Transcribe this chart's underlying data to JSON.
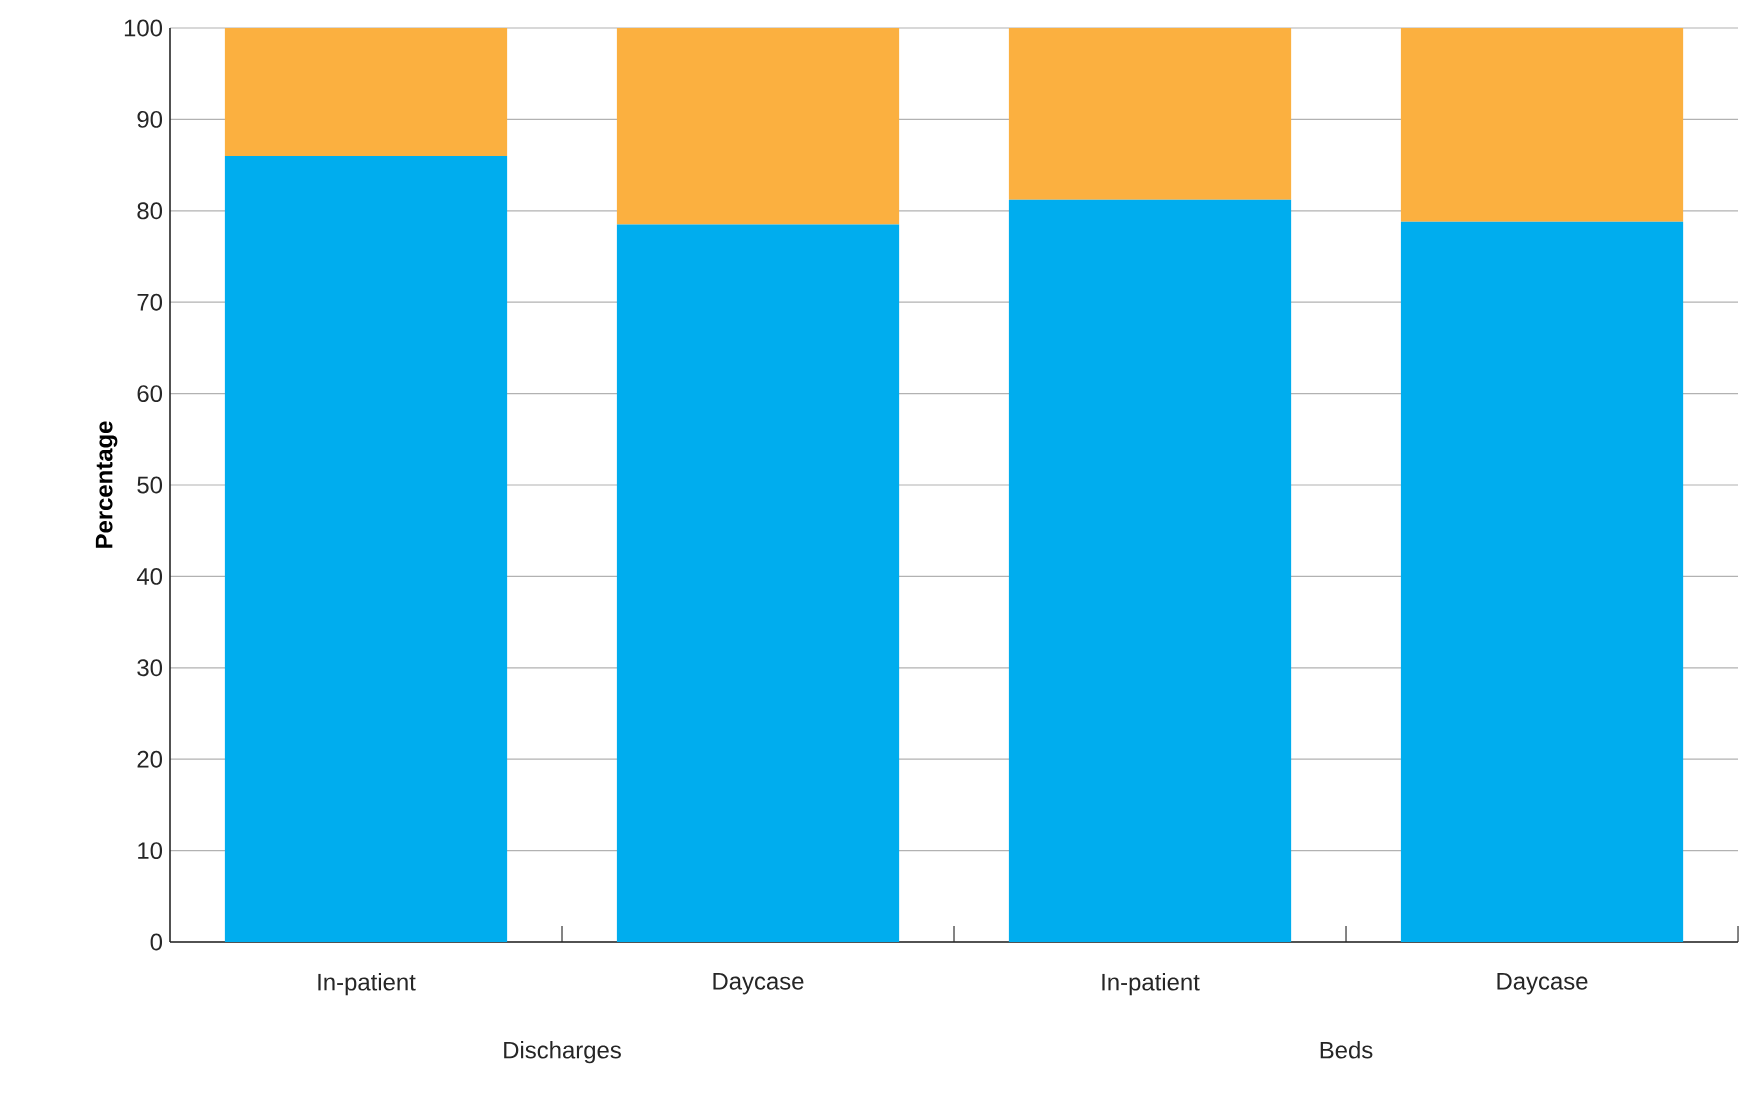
{
  "chart_data": {
    "type": "bar",
    "stacked": true,
    "ylabel": "Percentage",
    "categories": [
      "In-patient",
      "Daycase",
      "In-patient",
      "Daycase"
    ],
    "series": [
      {
        "color": "#00adee",
        "values": [
          86,
          78.5,
          81.2,
          78.8
        ]
      },
      {
        "color": "#fbb040",
        "values": [
          14,
          21.5,
          18.8,
          21.2
        ]
      }
    ],
    "ylim": [
      0,
      100
    ],
    "yticks": [
      0,
      10,
      20,
      30,
      40,
      50,
      60,
      70,
      80,
      90,
      100
    ],
    "grid": "y",
    "annotations": [
      "Discharges",
      "Beds"
    ]
  }
}
